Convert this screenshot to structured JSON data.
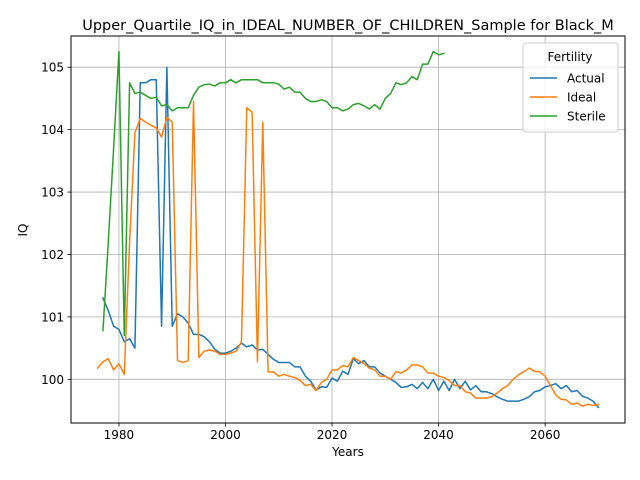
{
  "chart_data": {
    "type": "line",
    "title": "Upper_Quartile_IQ_in_IDEAL_NUMBER_OF_CHILDREN_Sample for Black_M",
    "xlabel": "Years",
    "ylabel": "IQ",
    "xlim": [
      1971,
      2075
    ],
    "ylim": [
      99.3,
      105.5
    ],
    "x_ticks": [
      1980,
      2000,
      2020,
      2040,
      2060
    ],
    "x_tick_labels": [
      "1980",
      "2000",
      "2020",
      "2040",
      "2060"
    ],
    "y_ticks": [
      100,
      101,
      102,
      103,
      104,
      105
    ],
    "y_tick_labels": [
      "100",
      "101",
      "102",
      "103",
      "104",
      "105"
    ],
    "grid": true,
    "legend_title": "Fertility",
    "legend_position": "top-right",
    "series": [
      {
        "name": "Actual",
        "color": "#1f77b4",
        "points": [
          [
            1977,
            101.3
          ],
          [
            1978,
            101.1
          ],
          [
            1979,
            100.85
          ],
          [
            1980,
            100.8
          ],
          [
            1981,
            100.6
          ],
          [
            1982,
            100.65
          ],
          [
            1983,
            100.5
          ],
          [
            1984,
            104.75
          ],
          [
            1985,
            104.75
          ],
          [
            1986,
            104.8
          ],
          [
            1987,
            104.8
          ],
          [
            1988,
            100.85
          ],
          [
            1989,
            105.0
          ],
          [
            1990,
            100.85
          ],
          [
            1991,
            101.05
          ],
          [
            1992,
            101.0
          ],
          [
            1993,
            100.9
          ],
          [
            1994,
            100.72
          ],
          [
            1995,
            100.72
          ],
          [
            1996,
            100.68
          ],
          [
            1997,
            100.6
          ],
          [
            1998,
            100.48
          ],
          [
            1999,
            100.42
          ],
          [
            2000,
            100.42
          ],
          [
            2001,
            100.45
          ],
          [
            2002,
            100.5
          ],
          [
            2003,
            100.58
          ],
          [
            2004,
            100.52
          ],
          [
            2005,
            100.55
          ],
          [
            2006,
            100.47
          ],
          [
            2007,
            100.48
          ],
          [
            2008,
            100.4
          ],
          [
            2009,
            100.32
          ],
          [
            2010,
            100.27
          ],
          [
            2011,
            100.27
          ],
          [
            2012,
            100.27
          ],
          [
            2013,
            100.2
          ],
          [
            2014,
            100.2
          ],
          [
            2015,
            100.05
          ],
          [
            2016,
            99.97
          ],
          [
            2017,
            99.83
          ],
          [
            2018,
            99.88
          ],
          [
            2019,
            99.87
          ],
          [
            2020,
            100.02
          ],
          [
            2021,
            99.97
          ],
          [
            2022,
            100.13
          ],
          [
            2023,
            100.08
          ],
          [
            2024,
            100.33
          ],
          [
            2025,
            100.25
          ],
          [
            2026,
            100.3
          ],
          [
            2027,
            100.2
          ],
          [
            2028,
            100.2
          ],
          [
            2029,
            100.1
          ],
          [
            2030,
            100.05
          ],
          [
            2031,
            100.0
          ],
          [
            2032,
            99.95
          ],
          [
            2033,
            99.87
          ],
          [
            2034,
            99.88
          ],
          [
            2035,
            99.92
          ],
          [
            2036,
            99.85
          ],
          [
            2037,
            99.95
          ],
          [
            2038,
            99.85
          ],
          [
            2039,
            100.0
          ],
          [
            2040,
            99.82
          ],
          [
            2041,
            99.97
          ],
          [
            2042,
            99.82
          ],
          [
            2043,
            100.0
          ],
          [
            2044,
            99.85
          ],
          [
            2045,
            99.97
          ],
          [
            2046,
            99.83
          ],
          [
            2047,
            99.9
          ],
          [
            2048,
            99.8
          ],
          [
            2049,
            99.8
          ],
          [
            2050,
            99.77
          ],
          [
            2051,
            99.72
          ],
          [
            2052,
            99.68
          ],
          [
            2053,
            99.65
          ],
          [
            2054,
            99.65
          ],
          [
            2055,
            99.65
          ],
          [
            2056,
            99.68
          ],
          [
            2057,
            99.72
          ],
          [
            2058,
            99.8
          ],
          [
            2059,
            99.82
          ],
          [
            2060,
            99.88
          ],
          [
            2061,
            99.9
          ],
          [
            2062,
            99.93
          ],
          [
            2063,
            99.85
          ],
          [
            2064,
            99.9
          ],
          [
            2065,
            99.8
          ],
          [
            2066,
            99.82
          ],
          [
            2067,
            99.73
          ],
          [
            2068,
            99.7
          ],
          [
            2069,
            99.65
          ],
          [
            2070,
            99.55
          ]
        ]
      },
      {
        "name": "Ideal",
        "color": "#ff7f0e",
        "points": [
          [
            1976,
            100.18
          ],
          [
            1977,
            100.28
          ],
          [
            1978,
            100.33
          ],
          [
            1979,
            100.15
          ],
          [
            1980,
            100.25
          ],
          [
            1981,
            100.08
          ],
          [
            1982,
            102.2
          ],
          [
            1983,
            103.95
          ],
          [
            1984,
            104.18
          ],
          [
            1985,
            104.12
          ],
          [
            1986,
            104.07
          ],
          [
            1987,
            104.03
          ],
          [
            1988,
            103.88
          ],
          [
            1989,
            104.2
          ],
          [
            1990,
            104.12
          ],
          [
            1991,
            100.3
          ],
          [
            1992,
            100.27
          ],
          [
            1993,
            100.3
          ],
          [
            1994,
            104.45
          ],
          [
            1995,
            100.35
          ],
          [
            1996,
            100.45
          ],
          [
            1997,
            100.47
          ],
          [
            1998,
            100.45
          ],
          [
            1999,
            100.4
          ],
          [
            2000,
            100.4
          ],
          [
            2001,
            100.42
          ],
          [
            2002,
            100.45
          ],
          [
            2003,
            100.6
          ],
          [
            2004,
            104.35
          ],
          [
            2005,
            104.28
          ],
          [
            2006,
            100.28
          ],
          [
            2007,
            104.12
          ],
          [
            2008,
            100.12
          ],
          [
            2009,
            100.12
          ],
          [
            2010,
            100.05
          ],
          [
            2011,
            100.08
          ],
          [
            2012,
            100.05
          ],
          [
            2013,
            100.03
          ],
          [
            2014,
            99.98
          ],
          [
            2015,
            99.9
          ],
          [
            2016,
            99.92
          ],
          [
            2017,
            99.82
          ],
          [
            2018,
            99.95
          ],
          [
            2019,
            100.0
          ],
          [
            2020,
            100.15
          ],
          [
            2021,
            100.15
          ],
          [
            2022,
            100.22
          ],
          [
            2023,
            100.2
          ],
          [
            2024,
            100.35
          ],
          [
            2025,
            100.3
          ],
          [
            2026,
            100.25
          ],
          [
            2027,
            100.18
          ],
          [
            2028,
            100.15
          ],
          [
            2029,
            100.05
          ],
          [
            2030,
            100.05
          ],
          [
            2031,
            100.0
          ],
          [
            2032,
            100.12
          ],
          [
            2033,
            100.1
          ],
          [
            2034,
            100.15
          ],
          [
            2035,
            100.23
          ],
          [
            2036,
            100.23
          ],
          [
            2037,
            100.2
          ],
          [
            2038,
            100.1
          ],
          [
            2039,
            100.1
          ],
          [
            2040,
            100.05
          ],
          [
            2041,
            100.03
          ],
          [
            2042,
            99.98
          ],
          [
            2043,
            99.9
          ],
          [
            2044,
            99.9
          ],
          [
            2045,
            99.8
          ],
          [
            2046,
            99.78
          ],
          [
            2047,
            99.7
          ],
          [
            2048,
            99.7
          ],
          [
            2049,
            99.7
          ],
          [
            2050,
            99.72
          ],
          [
            2051,
            99.78
          ],
          [
            2052,
            99.85
          ],
          [
            2053,
            99.9
          ],
          [
            2054,
            100.0
          ],
          [
            2055,
            100.07
          ],
          [
            2056,
            100.12
          ],
          [
            2057,
            100.18
          ],
          [
            2058,
            100.13
          ],
          [
            2059,
            100.12
          ],
          [
            2060,
            100.05
          ],
          [
            2061,
            99.9
          ],
          [
            2062,
            99.75
          ],
          [
            2063,
            99.68
          ],
          [
            2064,
            99.67
          ],
          [
            2065,
            99.6
          ],
          [
            2066,
            99.62
          ],
          [
            2067,
            99.57
          ],
          [
            2068,
            99.6
          ],
          [
            2069,
            99.58
          ],
          [
            2070,
            99.6
          ]
        ]
      },
      {
        "name": "Sterile",
        "color": "#2ca02c",
        "points": [
          [
            1977,
            100.78
          ],
          [
            1978,
            102.2
          ],
          [
            1979,
            103.7
          ],
          [
            1980,
            105.25
          ],
          [
            1981,
            100.7
          ],
          [
            1982,
            104.75
          ],
          [
            1983,
            104.58
          ],
          [
            1984,
            104.6
          ],
          [
            1985,
            104.55
          ],
          [
            1986,
            104.5
          ],
          [
            1987,
            104.52
          ],
          [
            1988,
            104.38
          ],
          [
            1989,
            104.4
          ],
          [
            1990,
            104.3
          ],
          [
            1991,
            104.35
          ],
          [
            1992,
            104.35
          ],
          [
            1993,
            104.35
          ],
          [
            1994,
            104.55
          ],
          [
            1995,
            104.68
          ],
          [
            1996,
            104.72
          ],
          [
            1997,
            104.73
          ],
          [
            1998,
            104.7
          ],
          [
            1999,
            104.75
          ],
          [
            2000,
            104.75
          ],
          [
            2001,
            104.8
          ],
          [
            2002,
            104.75
          ],
          [
            2003,
            104.8
          ],
          [
            2004,
            104.8
          ],
          [
            2005,
            104.8
          ],
          [
            2006,
            104.8
          ],
          [
            2007,
            104.75
          ],
          [
            2008,
            104.75
          ],
          [
            2009,
            104.75
          ],
          [
            2010,
            104.73
          ],
          [
            2011,
            104.65
          ],
          [
            2012,
            104.68
          ],
          [
            2013,
            104.6
          ],
          [
            2014,
            104.6
          ],
          [
            2015,
            104.5
          ],
          [
            2016,
            104.45
          ],
          [
            2017,
            104.45
          ],
          [
            2018,
            104.48
          ],
          [
            2019,
            104.45
          ],
          [
            2020,
            104.35
          ],
          [
            2021,
            104.35
          ],
          [
            2022,
            104.3
          ],
          [
            2023,
            104.33
          ],
          [
            2024,
            104.4
          ],
          [
            2025,
            104.42
          ],
          [
            2026,
            104.38
          ],
          [
            2027,
            104.33
          ],
          [
            2028,
            104.4
          ],
          [
            2029,
            104.33
          ],
          [
            2030,
            104.5
          ],
          [
            2031,
            104.58
          ],
          [
            2032,
            104.75
          ],
          [
            2033,
            104.72
          ],
          [
            2034,
            104.75
          ],
          [
            2035,
            104.85
          ],
          [
            2036,
            104.8
          ],
          [
            2037,
            105.05
          ],
          [
            2038,
            105.05
          ],
          [
            2039,
            105.25
          ],
          [
            2040,
            105.2
          ],
          [
            2041,
            105.22
          ]
        ]
      }
    ]
  }
}
